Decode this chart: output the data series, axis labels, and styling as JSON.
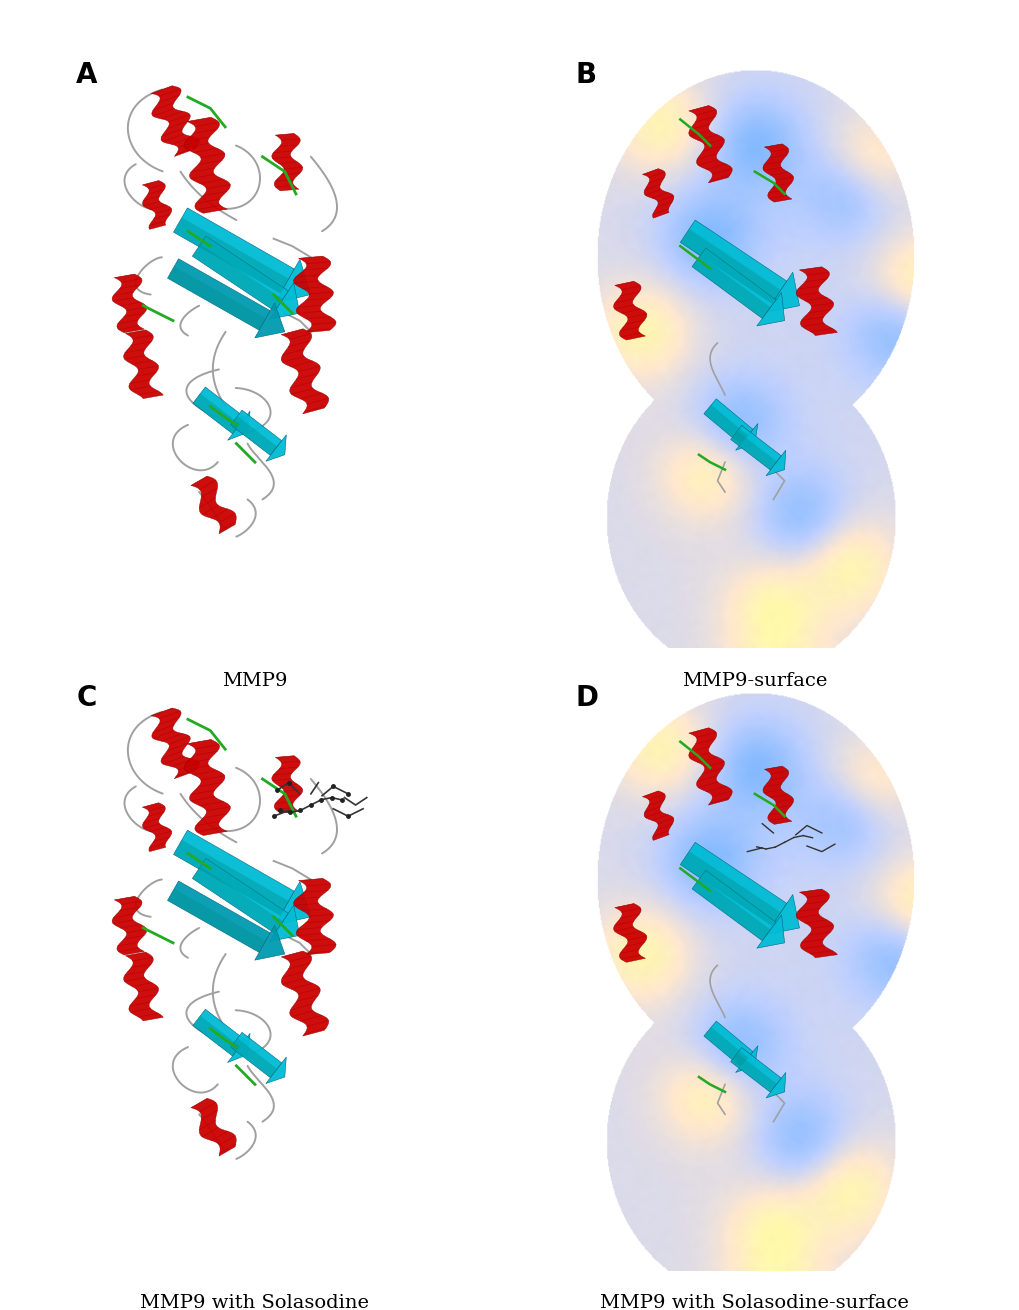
{
  "figure_width": 10.2,
  "figure_height": 13.1,
  "dpi": 100,
  "background_color": "#ffffff",
  "label_fontsize": 20,
  "caption_fontsize": 14,
  "label_fontweight": "bold",
  "caption_color": "#000000",
  "panels": [
    {
      "label": "A",
      "caption": "MMP9"
    },
    {
      "label": "B",
      "caption": "MMP9-surface"
    },
    {
      "label": "C",
      "caption": "MMP9 with Solasodine"
    },
    {
      "label": "D",
      "caption": "MMP9 with Solasodine-surface"
    }
  ]
}
